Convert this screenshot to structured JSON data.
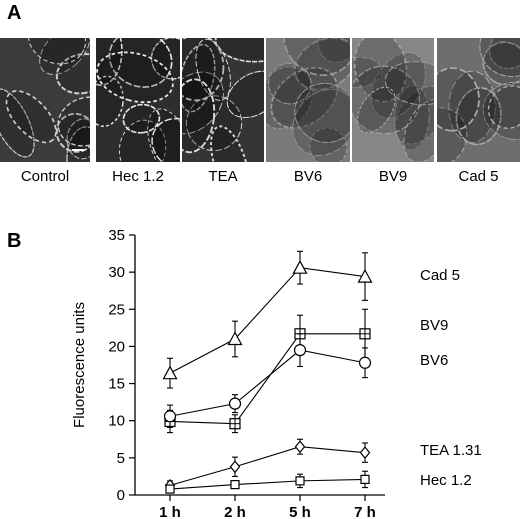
{
  "panels": {
    "a_label": "A",
    "b_label": "B"
  },
  "micrographs": [
    {
      "label": "Control",
      "tone": "#3b3b3b",
      "edge": "#cfcfcf",
      "scale_bar": true
    },
    {
      "label": "Hec 1.2",
      "tone": "#2e2e2e",
      "edge": "#e6e6e6"
    },
    {
      "label": "TEA",
      "tone": "#353535",
      "edge": "#dadada"
    },
    {
      "label": "BV6",
      "tone": "#7a7a7a",
      "edge": "#9a9a9a"
    },
    {
      "label": "BV9",
      "tone": "#868686",
      "edge": "#a0a0a0"
    },
    {
      "label": "Cad 5",
      "tone": "#6e6e6e",
      "edge": "#a8a8a8"
    }
  ],
  "chart_data": {
    "type": "line",
    "categories": [
      "1 h",
      "2 h",
      "5 h",
      "7 h"
    ],
    "ylabel": "Fluorescence units",
    "xlabel": "",
    "ylim": [
      0,
      35
    ],
    "yticks": [
      0,
      5,
      10,
      15,
      20,
      25,
      30,
      35
    ],
    "series": [
      {
        "name": "Cad 5",
        "marker": "triangle",
        "values": [
          16.4,
          21.0,
          30.6,
          29.4
        ],
        "errors": [
          2.0,
          2.4,
          2.2,
          3.2
        ]
      },
      {
        "name": "BV9",
        "marker": "square-plus",
        "values": [
          9.9,
          9.6,
          21.7,
          21.7
        ],
        "errors": [
          1.5,
          1.2,
          2.5,
          3.3
        ]
      },
      {
        "name": "BV6",
        "marker": "circle",
        "values": [
          10.6,
          12.3,
          19.5,
          17.8
        ],
        "errors": [
          1.5,
          1.2,
          2.2,
          2.0
        ]
      },
      {
        "name": "TEA 1.31",
        "marker": "diamond",
        "values": [
          1.3,
          3.8,
          6.5,
          5.7
        ],
        "errors": [
          0.6,
          1.3,
          1.0,
          1.3
        ]
      },
      {
        "name": "Hec 1.2",
        "marker": "square",
        "values": [
          0.8,
          1.4,
          1.9,
          2.1
        ],
        "errors": [
          0.3,
          0.4,
          0.9,
          1.1
        ]
      }
    ]
  }
}
